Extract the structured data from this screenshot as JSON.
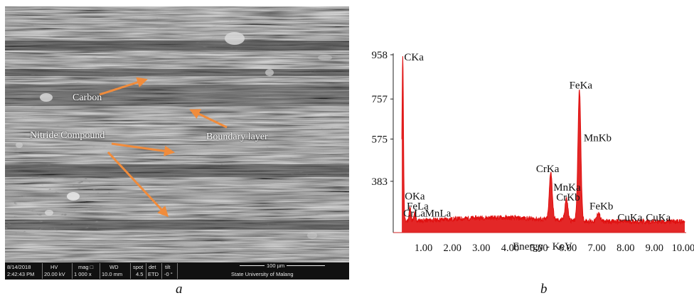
{
  "panel_a": {
    "caption": "a",
    "labels": {
      "carbon": "Carbon",
      "nitride": "Nitride Compound",
      "boundary": "Boundary layer"
    },
    "arrow_color": "#f08c3c",
    "info_bar": {
      "date": "8/14/2018",
      "time": "2:42:43 PM",
      "hv_title": "HV",
      "hv": "20.00 kV",
      "mag_title": "mag □",
      "mag": "1 000 x",
      "wd_title": "WD",
      "wd": "10.0 mm",
      "spot_title": "spot",
      "spot": "4.5",
      "det_title": "det",
      "det": "ETD",
      "tilt_title": "tilt",
      "tilt": "-0 °",
      "scale": "100 µm",
      "institution": "State University of Malang"
    }
  },
  "panel_b": {
    "caption": "b",
    "chart_data": {
      "type": "line",
      "xlabel": "Energy - KeV",
      "ylabel": "",
      "x_ticks": [
        "1.00",
        "2.00",
        "3.00",
        "4.00",
        "5.00",
        "6.00",
        "7.00",
        "8.00",
        "9.00",
        "10.00"
      ],
      "y_ticks": [
        "958",
        "757",
        "575",
        "383"
      ],
      "xlim": [
        0.5,
        10.1
      ],
      "ylim": [
        150,
        958
      ],
      "series_color": "#e01010",
      "peaks": [
        {
          "label": "CKa",
          "x": 0.28,
          "y": 958
        },
        {
          "label": "OKa",
          "x": 0.53,
          "y": 300
        },
        {
          "label": "FeLa",
          "x": 0.7,
          "y": 255
        },
        {
          "label": "CrLa",
          "x": 0.57,
          "y": 230
        },
        {
          "label": "MnLa",
          "x": 0.64,
          "y": 225
        },
        {
          "label": "CrKa",
          "x": 5.41,
          "y": 420
        },
        {
          "label": "MnKa",
          "x": 5.9,
          "y": 300
        },
        {
          "label": "CrKb",
          "x": 5.95,
          "y": 280
        },
        {
          "label": "FeKa",
          "x": 6.4,
          "y": 800
        },
        {
          "label": "MnKb",
          "x": 6.49,
          "y": 560
        },
        {
          "label": "FeKb",
          "x": 7.06,
          "y": 245
        },
        {
          "label": "CuKa",
          "x": 8.04,
          "y": 185
        },
        {
          "label": "CuKa",
          "x": 8.9,
          "y": 180
        }
      ],
      "baseline": 200
    }
  }
}
